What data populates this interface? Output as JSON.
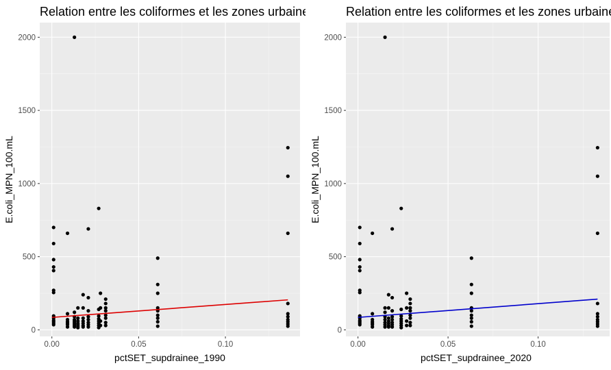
{
  "chart_data": [
    {
      "type": "scatter",
      "title": "Relation entre les coliformes et les zones urbaines",
      "xlabel": "pctSET_supdrainee_1990",
      "ylabel": "E.coli_MPN_100.mL",
      "xlim": [
        -0.007,
        0.143
      ],
      "ylim": [
        -45,
        2100
      ],
      "xticks": [
        0.0,
        0.05,
        0.1
      ],
      "xtick_labels": [
        "0.00",
        "0.05",
        "0.10"
      ],
      "yticks": [
        0,
        500,
        1000,
        1500,
        2000
      ],
      "ytick_labels": [
        "0",
        "500",
        "1000",
        "1500",
        "2000"
      ],
      "grid": true,
      "point_color": "#000000",
      "trend_line": {
        "color": "#dd0000",
        "x0": 0.0,
        "y0": 85,
        "x1": 0.136,
        "y1": 205
      },
      "points": [
        {
          "x": 0.001,
          "y": 700
        },
        {
          "x": 0.001,
          "y": 590
        },
        {
          "x": 0.001,
          "y": 480
        },
        {
          "x": 0.001,
          "y": 430
        },
        {
          "x": 0.001,
          "y": 405
        },
        {
          "x": 0.001,
          "y": 270
        },
        {
          "x": 0.001,
          "y": 255
        },
        {
          "x": 0.001,
          "y": 95
        },
        {
          "x": 0.001,
          "y": 80
        },
        {
          "x": 0.001,
          "y": 65
        },
        {
          "x": 0.001,
          "y": 55
        },
        {
          "x": 0.001,
          "y": 45
        },
        {
          "x": 0.001,
          "y": 35
        },
        {
          "x": 0.009,
          "y": 660
        },
        {
          "x": 0.009,
          "y": 110
        },
        {
          "x": 0.009,
          "y": 70
        },
        {
          "x": 0.009,
          "y": 55
        },
        {
          "x": 0.009,
          "y": 45
        },
        {
          "x": 0.009,
          "y": 35
        },
        {
          "x": 0.009,
          "y": 20
        },
        {
          "x": 0.013,
          "y": 2000
        },
        {
          "x": 0.013,
          "y": 120
        },
        {
          "x": 0.013,
          "y": 90
        },
        {
          "x": 0.013,
          "y": 70
        },
        {
          "x": 0.013,
          "y": 60
        },
        {
          "x": 0.013,
          "y": 50
        },
        {
          "x": 0.013,
          "y": 40
        },
        {
          "x": 0.013,
          "y": 30
        },
        {
          "x": 0.013,
          "y": 20
        },
        {
          "x": 0.015,
          "y": 150
        },
        {
          "x": 0.015,
          "y": 80
        },
        {
          "x": 0.015,
          "y": 60
        },
        {
          "x": 0.015,
          "y": 45
        },
        {
          "x": 0.015,
          "y": 35
        },
        {
          "x": 0.015,
          "y": 25
        },
        {
          "x": 0.015,
          "y": 15
        },
        {
          "x": 0.018,
          "y": 240
        },
        {
          "x": 0.018,
          "y": 150
        },
        {
          "x": 0.018,
          "y": 80
        },
        {
          "x": 0.018,
          "y": 60
        },
        {
          "x": 0.018,
          "y": 45
        },
        {
          "x": 0.018,
          "y": 30
        },
        {
          "x": 0.018,
          "y": 20
        },
        {
          "x": 0.021,
          "y": 690
        },
        {
          "x": 0.021,
          "y": 220
        },
        {
          "x": 0.021,
          "y": 130
        },
        {
          "x": 0.021,
          "y": 90
        },
        {
          "x": 0.021,
          "y": 70
        },
        {
          "x": 0.021,
          "y": 50
        },
        {
          "x": 0.021,
          "y": 35
        },
        {
          "x": 0.021,
          "y": 20
        },
        {
          "x": 0.027,
          "y": 830
        },
        {
          "x": 0.027,
          "y": 140
        },
        {
          "x": 0.027,
          "y": 95
        },
        {
          "x": 0.027,
          "y": 75
        },
        {
          "x": 0.027,
          "y": 60
        },
        {
          "x": 0.027,
          "y": 45
        },
        {
          "x": 0.027,
          "y": 30
        },
        {
          "x": 0.027,
          "y": 15
        },
        {
          "x": 0.028,
          "y": 250
        },
        {
          "x": 0.028,
          "y": 150
        },
        {
          "x": 0.028,
          "y": 60
        },
        {
          "x": 0.028,
          "y": 30
        },
        {
          "x": 0.031,
          "y": 210
        },
        {
          "x": 0.031,
          "y": 180
        },
        {
          "x": 0.031,
          "y": 150
        },
        {
          "x": 0.031,
          "y": 130
        },
        {
          "x": 0.031,
          "y": 100
        },
        {
          "x": 0.031,
          "y": 80
        },
        {
          "x": 0.031,
          "y": 50
        },
        {
          "x": 0.031,
          "y": 30
        },
        {
          "x": 0.061,
          "y": 490
        },
        {
          "x": 0.061,
          "y": 310
        },
        {
          "x": 0.061,
          "y": 250
        },
        {
          "x": 0.061,
          "y": 150
        },
        {
          "x": 0.061,
          "y": 130
        },
        {
          "x": 0.061,
          "y": 100
        },
        {
          "x": 0.061,
          "y": 80
        },
        {
          "x": 0.061,
          "y": 55
        },
        {
          "x": 0.061,
          "y": 25
        },
        {
          "x": 0.136,
          "y": 1245
        },
        {
          "x": 0.136,
          "y": 1050
        },
        {
          "x": 0.136,
          "y": 660
        },
        {
          "x": 0.136,
          "y": 180
        },
        {
          "x": 0.136,
          "y": 110
        },
        {
          "x": 0.136,
          "y": 90
        },
        {
          "x": 0.136,
          "y": 70
        },
        {
          "x": 0.136,
          "y": 55
        },
        {
          "x": 0.136,
          "y": 40
        },
        {
          "x": 0.136,
          "y": 25
        }
      ]
    },
    {
      "type": "scatter",
      "title": "Relation entre les coliformes et les zones urbaines",
      "xlabel": "pctSET_supdrainee_2020",
      "ylabel": "E.coli_MPN_100.mL",
      "xlim": [
        -0.0067,
        0.1397
      ],
      "ylim": [
        -45,
        2100
      ],
      "xticks": [
        0.0,
        0.05,
        0.1
      ],
      "xtick_labels": [
        "0.00",
        "0.05",
        "0.10"
      ],
      "yticks": [
        0,
        500,
        1000,
        1500,
        2000
      ],
      "ytick_labels": [
        "0",
        "500",
        "1000",
        "1500",
        "2000"
      ],
      "grid": true,
      "point_color": "#000000",
      "trend_line": {
        "color": "#0000cc",
        "x0": 0.0,
        "y0": 85,
        "x1": 0.133,
        "y1": 210
      },
      "points": [
        {
          "x": 0.001,
          "y": 700
        },
        {
          "x": 0.001,
          "y": 590
        },
        {
          "x": 0.001,
          "y": 480
        },
        {
          "x": 0.001,
          "y": 430
        },
        {
          "x": 0.001,
          "y": 405
        },
        {
          "x": 0.001,
          "y": 270
        },
        {
          "x": 0.001,
          "y": 255
        },
        {
          "x": 0.001,
          "y": 95
        },
        {
          "x": 0.001,
          "y": 80
        },
        {
          "x": 0.001,
          "y": 65
        },
        {
          "x": 0.001,
          "y": 55
        },
        {
          "x": 0.001,
          "y": 45
        },
        {
          "x": 0.001,
          "y": 35
        },
        {
          "x": 0.008,
          "y": 660
        },
        {
          "x": 0.008,
          "y": 110
        },
        {
          "x": 0.008,
          "y": 70
        },
        {
          "x": 0.008,
          "y": 55
        },
        {
          "x": 0.008,
          "y": 45
        },
        {
          "x": 0.008,
          "y": 35
        },
        {
          "x": 0.008,
          "y": 20
        },
        {
          "x": 0.015,
          "y": 2000
        },
        {
          "x": 0.015,
          "y": 150
        },
        {
          "x": 0.015,
          "y": 120
        },
        {
          "x": 0.015,
          "y": 90
        },
        {
          "x": 0.015,
          "y": 70
        },
        {
          "x": 0.015,
          "y": 50
        },
        {
          "x": 0.015,
          "y": 35
        },
        {
          "x": 0.015,
          "y": 20
        },
        {
          "x": 0.017,
          "y": 240
        },
        {
          "x": 0.017,
          "y": 150
        },
        {
          "x": 0.017,
          "y": 80
        },
        {
          "x": 0.017,
          "y": 60
        },
        {
          "x": 0.017,
          "y": 45
        },
        {
          "x": 0.017,
          "y": 30
        },
        {
          "x": 0.017,
          "y": 20
        },
        {
          "x": 0.019,
          "y": 690
        },
        {
          "x": 0.019,
          "y": 220
        },
        {
          "x": 0.019,
          "y": 130
        },
        {
          "x": 0.019,
          "y": 90
        },
        {
          "x": 0.019,
          "y": 70
        },
        {
          "x": 0.019,
          "y": 50
        },
        {
          "x": 0.019,
          "y": 35
        },
        {
          "x": 0.019,
          "y": 20
        },
        {
          "x": 0.024,
          "y": 830
        },
        {
          "x": 0.024,
          "y": 140
        },
        {
          "x": 0.024,
          "y": 95
        },
        {
          "x": 0.024,
          "y": 75
        },
        {
          "x": 0.024,
          "y": 60
        },
        {
          "x": 0.024,
          "y": 45
        },
        {
          "x": 0.024,
          "y": 30
        },
        {
          "x": 0.024,
          "y": 15
        },
        {
          "x": 0.027,
          "y": 250
        },
        {
          "x": 0.027,
          "y": 150
        },
        {
          "x": 0.027,
          "y": 60
        },
        {
          "x": 0.027,
          "y": 30
        },
        {
          "x": 0.029,
          "y": 210
        },
        {
          "x": 0.029,
          "y": 180
        },
        {
          "x": 0.029,
          "y": 150
        },
        {
          "x": 0.029,
          "y": 130
        },
        {
          "x": 0.029,
          "y": 100
        },
        {
          "x": 0.029,
          "y": 80
        },
        {
          "x": 0.029,
          "y": 50
        },
        {
          "x": 0.029,
          "y": 30
        },
        {
          "x": 0.063,
          "y": 490
        },
        {
          "x": 0.063,
          "y": 310
        },
        {
          "x": 0.063,
          "y": 250
        },
        {
          "x": 0.063,
          "y": 150
        },
        {
          "x": 0.063,
          "y": 130
        },
        {
          "x": 0.063,
          "y": 100
        },
        {
          "x": 0.063,
          "y": 80
        },
        {
          "x": 0.063,
          "y": 55
        },
        {
          "x": 0.063,
          "y": 25
        },
        {
          "x": 0.133,
          "y": 1245
        },
        {
          "x": 0.133,
          "y": 1050
        },
        {
          "x": 0.133,
          "y": 660
        },
        {
          "x": 0.133,
          "y": 180
        },
        {
          "x": 0.133,
          "y": 110
        },
        {
          "x": 0.133,
          "y": 90
        },
        {
          "x": 0.133,
          "y": 70
        },
        {
          "x": 0.133,
          "y": 55
        },
        {
          "x": 0.133,
          "y": 40
        },
        {
          "x": 0.133,
          "y": 25
        }
      ]
    }
  ]
}
